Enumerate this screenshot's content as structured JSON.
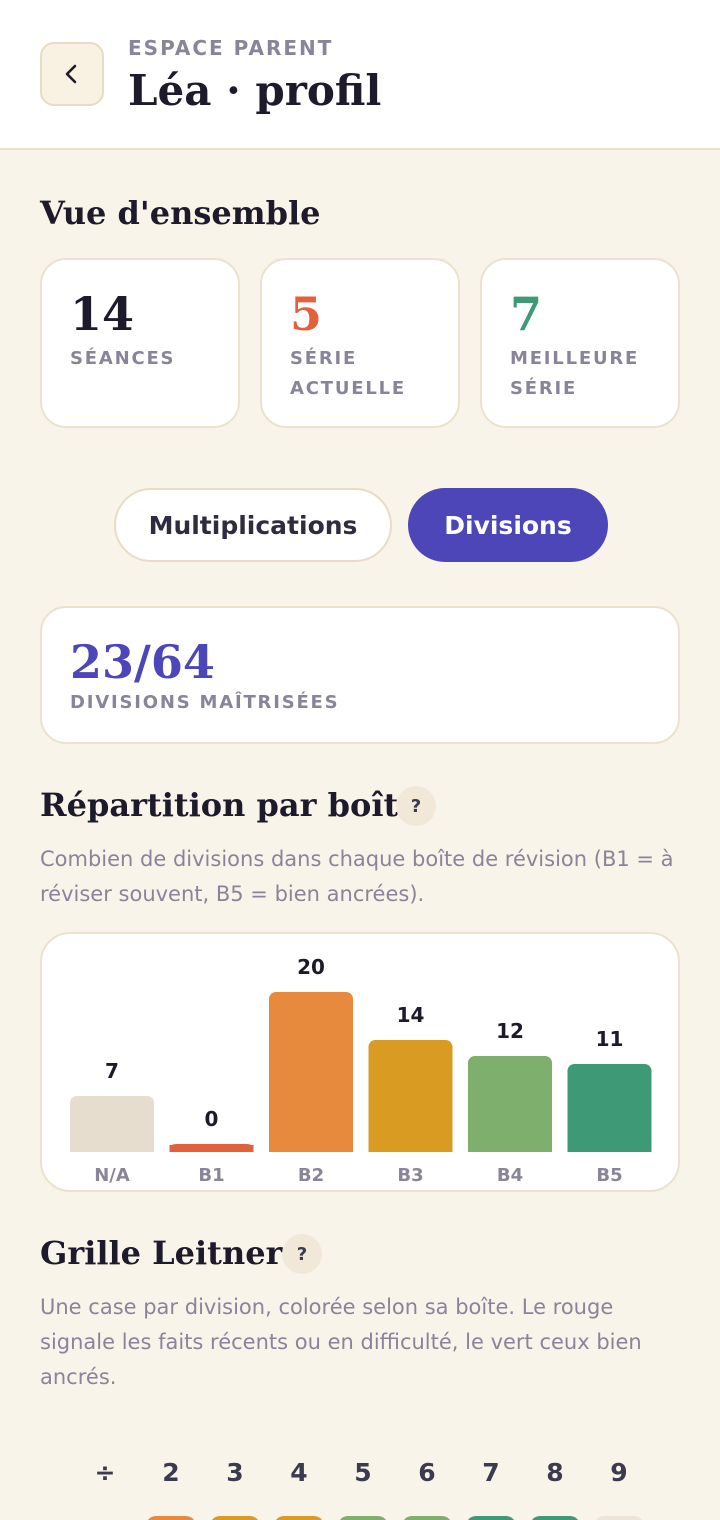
{
  "header": {
    "eyebrow": "ESPACE PARENT",
    "title": "Léa · profil",
    "back_icon": "chevron-left-icon"
  },
  "overview": {
    "title": "Vue d'ensemble",
    "stats": [
      {
        "value": "14",
        "label": "SÉANCES",
        "color": "#1c1a2b"
      },
      {
        "value": "5",
        "label": "SÉRIE ACTUELLE",
        "color": "#e2603c"
      },
      {
        "value": "7",
        "label": "MEILLEURE SÉRIE",
        "color": "#3e9a76"
      }
    ]
  },
  "toggle": {
    "options": [
      "Multiplications",
      "Divisions"
    ],
    "selected": "Divisions"
  },
  "mastery": {
    "value": "23/64",
    "label": "DIVISIONS MAÎTRISÉES"
  },
  "distribution": {
    "title": "Répartition par boîte",
    "help": "?",
    "description": "Combien de divisions dans chaque boîte de révision (B1 = à réviser souvent, B5 = bien ancrées)."
  },
  "chart_data": {
    "type": "bar",
    "categories": [
      "N/A",
      "B1",
      "B2",
      "B3",
      "B4",
      "B5"
    ],
    "values": [
      7,
      0,
      20,
      14,
      12,
      11
    ],
    "data_labels": [
      "7",
      "0",
      "20",
      "14",
      "12",
      "11"
    ],
    "colors": [
      "#e6ddce",
      "#e2603c",
      "#e88a3e",
      "#d99b22",
      "#7faf6c",
      "#3e9a76"
    ]
  },
  "leitner": {
    "title": "Grille Leitner",
    "help": "?",
    "description": "Une case par division, colorée selon sa boîte. Le rouge signale les faits récents ou en difficulté, le vert ceux bien ancrés.",
    "operator": "÷",
    "columns": [
      "2",
      "3",
      "4",
      "5",
      "6",
      "7",
      "8",
      "9"
    ],
    "first_row_colors": [
      "#e88a3e",
      "#d99b22",
      "#d99b22",
      "#7faf6c",
      "#7faf6c",
      "#3e9a76",
      "#3e9a76",
      "#ece5d8"
    ]
  }
}
